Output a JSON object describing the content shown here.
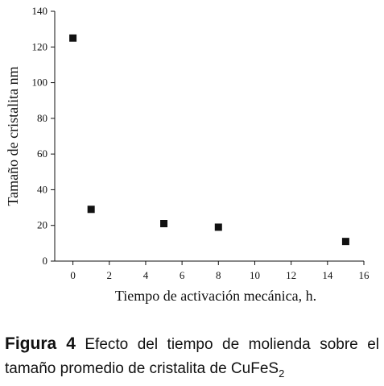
{
  "chart_data": {
    "type": "scatter",
    "x_label": "Tiempo de activación mecánica, h.",
    "y_label": "Tamaño de cristalita nm",
    "x": [
      0,
      1,
      5,
      8,
      15
    ],
    "values": [
      125,
      29,
      21,
      19,
      11
    ],
    "color": "#111111",
    "xlim": [
      -1,
      16
    ],
    "xticks": [
      0,
      2,
      4,
      6,
      8,
      10,
      12,
      14,
      16
    ],
    "ylim": [
      0,
      140
    ],
    "yticks": [
      0,
      20,
      40,
      60,
      80,
      100,
      120,
      140
    ],
    "grid": false
  },
  "caption": {
    "label": "Figura 4",
    "text": "Efecto del tiempo de molienda sobre el tamaño promedio de cristalita de CuFeS",
    "subscript": "2"
  }
}
